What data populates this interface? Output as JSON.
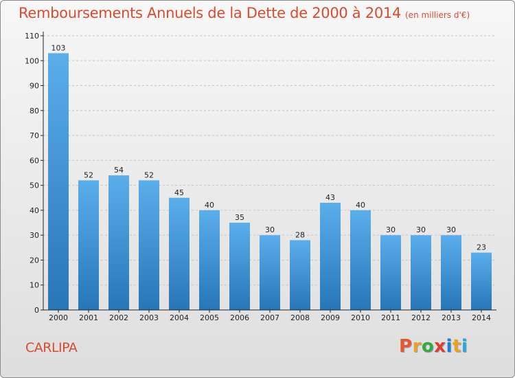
{
  "header": {
    "title": "Remboursements Annuels de la Dette de 2000 à 2014",
    "unit": "(en milliers d'€)"
  },
  "footer": {
    "commune": "CARLIPA",
    "brand": "Proxiti"
  },
  "colors": {
    "title": "#d94b2f",
    "bar_top": "#5aaeea",
    "bar_bottom": "#2776b8",
    "axis": "#222222",
    "grid": "#c4c4c4",
    "brand_letters": [
      "#e8562e",
      "#f0a020",
      "#3aa83a",
      "#e23b2c",
      "#1c7fd0",
      "#f0a020",
      "#2aa9d6"
    ]
  },
  "chart_data": {
    "type": "bar",
    "title": "Remboursements Annuels de la Dette de 2000 à 2014",
    "subtitle": "(en milliers d'€)",
    "xlabel": "",
    "ylabel": "",
    "categories": [
      "2000",
      "2001",
      "2002",
      "2003",
      "2004",
      "2005",
      "2006",
      "2007",
      "2008",
      "2009",
      "2010",
      "2011",
      "2012",
      "2013",
      "2014"
    ],
    "values": [
      103,
      52,
      54,
      52,
      45,
      40,
      35,
      30,
      28,
      43,
      40,
      30,
      30,
      30,
      23
    ],
    "ylim": [
      0,
      110
    ],
    "yticks": [
      0,
      10,
      20,
      30,
      40,
      50,
      60,
      70,
      80,
      90,
      100,
      110
    ],
    "grid": "dashed horizontal",
    "legend": "none"
  }
}
